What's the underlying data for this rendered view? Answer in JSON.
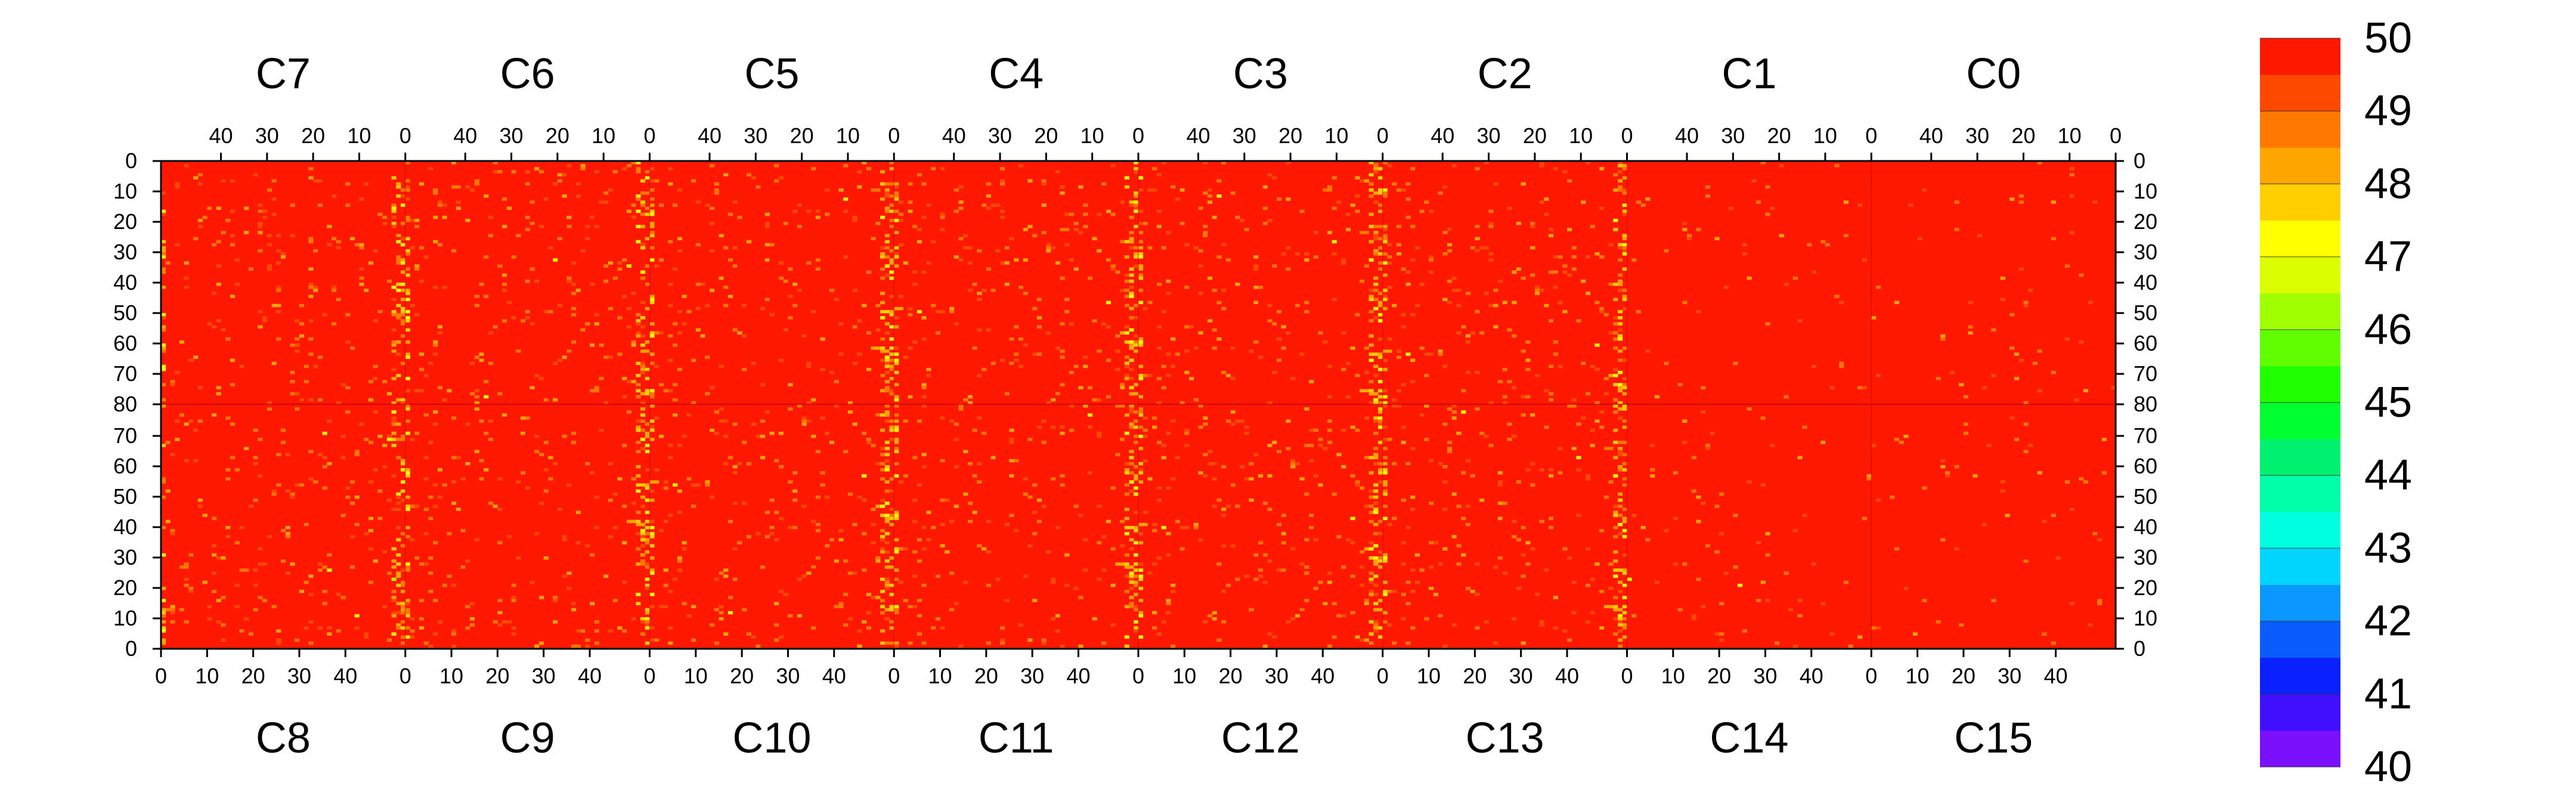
{
  "chart_data": {
    "type": "heatmap",
    "title": "",
    "xlabel": "",
    "ylabel": "",
    "top_chip_labels": [
      "C7",
      "C6",
      "C5",
      "C4",
      "C3",
      "C2",
      "C1",
      "C0"
    ],
    "bottom_chip_labels": [
      "C8",
      "C9",
      "C10",
      "C11",
      "C12",
      "C13",
      "C14",
      "C15"
    ],
    "x_ticks_top": [
      "40",
      "30",
      "20",
      "10",
      "0"
    ],
    "x_ticks_bottom": [
      "0",
      "10",
      "20",
      "30",
      "40"
    ],
    "y_ticks_upper": [
      "0",
      "10",
      "20",
      "30",
      "40",
      "50",
      "60",
      "70",
      "80"
    ],
    "y_ticks_lower": [
      "70",
      "60",
      "50",
      "40",
      "30",
      "20",
      "10",
      "0"
    ],
    "columns_per_chip": 53,
    "rows_per_half": 80,
    "colorbar": {
      "min": 40,
      "max": 50,
      "ticks": [
        "40",
        "41",
        "42",
        "43",
        "44",
        "45",
        "46",
        "47",
        "48",
        "49",
        "50"
      ],
      "colors": [
        "#7a10ff",
        "#3e10ff",
        "#0a20ff",
        "#0a5cff",
        "#0a98ff",
        "#00d4ff",
        "#00ffe0",
        "#00ffa8",
        "#00f070",
        "#00ff30",
        "#20ff00",
        "#60ff00",
        "#a0ff00",
        "#dcff00",
        "#ffff00",
        "#ffd000",
        "#ffa500",
        "#ff7800",
        "#ff4800",
        "#ff1800"
      ]
    },
    "value_summary": {
      "dominant_value": 50,
      "typical_min": 46,
      "note_bright_columns_near_chip_edges": true
    }
  }
}
